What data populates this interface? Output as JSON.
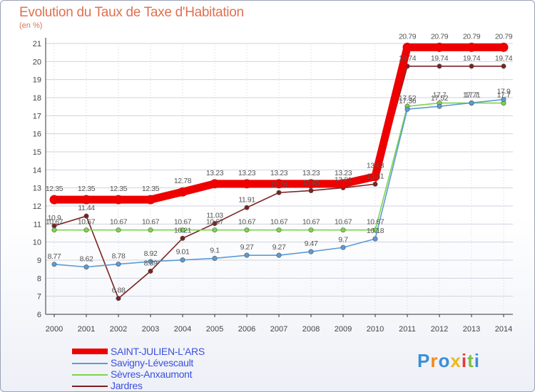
{
  "header": {
    "title": "Evolution du Taux de Taxe d'Habitation",
    "subtitle": "(en %)"
  },
  "logo": {
    "text": "Proxiti"
  },
  "colors": {
    "grid": "#cfd3e0",
    "axis": "#333333",
    "title": "#e07050"
  },
  "chart_data": {
    "type": "line",
    "x": [
      "2000",
      "2001",
      "2002",
      "2003",
      "2004",
      "2005",
      "2006",
      "2007",
      "2008",
      "2009",
      "2010",
      "2011",
      "2012",
      "2013",
      "2014"
    ],
    "ylim": [
      6,
      21
    ],
    "yticks": [
      6,
      7,
      8,
      9,
      10,
      11,
      12,
      13,
      14,
      15,
      16,
      17,
      18,
      19,
      20,
      21
    ],
    "legend_position": "bottom-left",
    "series": [
      {
        "name": "SAINT-JULIEN-L'ARS",
        "color": "#ee0000",
        "values": [
          12.35,
          12.35,
          12.35,
          12.35,
          12.78,
          13.23,
          13.23,
          13.23,
          13.23,
          13.23,
          13.63,
          20.79,
          20.79,
          20.79,
          20.79
        ],
        "labels": [
          "12.35",
          "12.35",
          "12.35",
          "12.35",
          "12.78",
          "13.23",
          "13.23",
          "13.23",
          "13.23",
          "13.23",
          "13.63",
          "20.79",
          "20.79",
          "20.79",
          "20.79"
        ]
      },
      {
        "name": "Savigny-Lévescault",
        "color": "#5b9bd5",
        "values": [
          8.77,
          8.62,
          8.78,
          8.92,
          9.01,
          9.1,
          9.27,
          9.27,
          9.47,
          9.7,
          10.18,
          17.36,
          17.52,
          17.71,
          17.9
        ],
        "labels": [
          "8.77",
          "8.62",
          "8.78",
          "8.92",
          "9.01",
          "9.1",
          "9.27",
          "9.27",
          "9.47",
          "9.7",
          "10.18",
          "17.36",
          "17.52",
          "17.71",
          "17.9"
        ]
      },
      {
        "name": "Sèvres-Anxaumont",
        "color": "#7ed44a",
        "values": [
          10.67,
          10.67,
          10.67,
          10.67,
          10.67,
          10.67,
          10.67,
          10.67,
          10.67,
          10.67,
          10.67,
          17.52,
          17.7,
          17.7,
          17.7
        ],
        "labels": [
          "10.67",
          "10.67",
          "10.67",
          "10.67",
          "10.67",
          "10.67",
          "10.67",
          "10.67",
          "10.67",
          "10.67",
          "10.67",
          "17.52",
          "17.7",
          "17.7",
          "17.7"
        ]
      },
      {
        "name": "Jardres",
        "color": "#7a2222",
        "values": [
          10.9,
          11.44,
          6.88,
          8.39,
          10.21,
          11.03,
          11.91,
          12.74,
          12.85,
          13.01,
          13.21,
          19.74,
          19.74,
          19.74,
          19.74
        ],
        "labels": [
          "10.9",
          "11.44",
          "6.88",
          "8.39",
          "10.21",
          "11.03",
          "11.91",
          "12.74",
          "12.85",
          "13.01",
          "13.21",
          "19.74",
          "19.74",
          "19.74",
          "19.74"
        ]
      }
    ]
  }
}
